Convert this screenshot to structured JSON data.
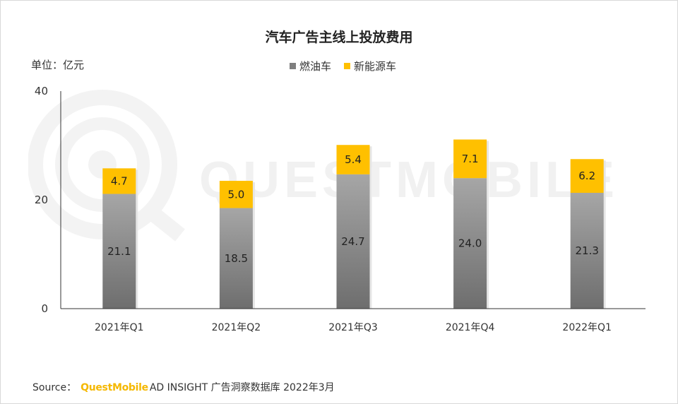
{
  "title": "汽车广告主线上投放费用",
  "unit_label": "单位：亿元",
  "colors": {
    "fuel": "#8c8c8c",
    "nev": "#ffc000",
    "axis": "#333333"
  },
  "watermark": "QUESTMOBILE",
  "source": {
    "prefix": "Source：",
    "brand": "QuestMobile",
    "rest": "AD INSIGHT 广告洞察数据库 2022年3月"
  },
  "chart_data": {
    "type": "bar",
    "stacked": true,
    "categories": [
      "2021年Q1",
      "2021年Q2",
      "2021年Q3",
      "2021年Q4",
      "2022年Q1"
    ],
    "series": [
      {
        "name": "燃油车",
        "values": [
          21.1,
          18.5,
          24.7,
          24.0,
          21.3
        ]
      },
      {
        "name": "新能源车",
        "values": [
          4.7,
          5.0,
          5.4,
          7.1,
          6.2
        ]
      }
    ],
    "yticks": [
      0,
      20,
      40
    ],
    "ylim": [
      0,
      40
    ],
    "legend_position": "top-center",
    "grid": false
  }
}
